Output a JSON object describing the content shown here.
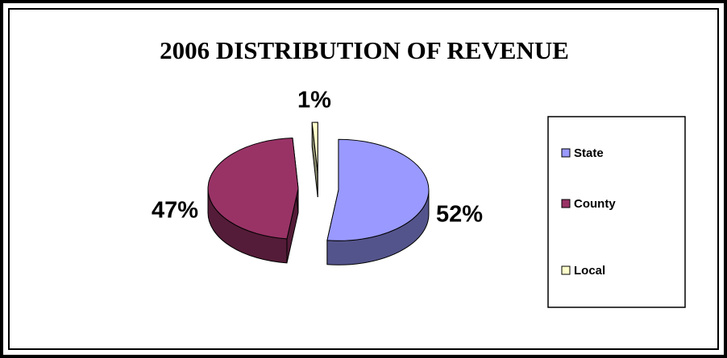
{
  "chart_data": {
    "type": "pie",
    "title": "2006 DISTRIBUTION OF REVENUE",
    "categories": [
      "State",
      "County",
      "Local"
    ],
    "values": [
      52,
      47,
      1
    ],
    "value_labels": [
      "52%",
      "47%",
      "1%"
    ],
    "colors": [
      "#9999ff",
      "#993366",
      "#ffffcc"
    ],
    "legend": "right"
  }
}
